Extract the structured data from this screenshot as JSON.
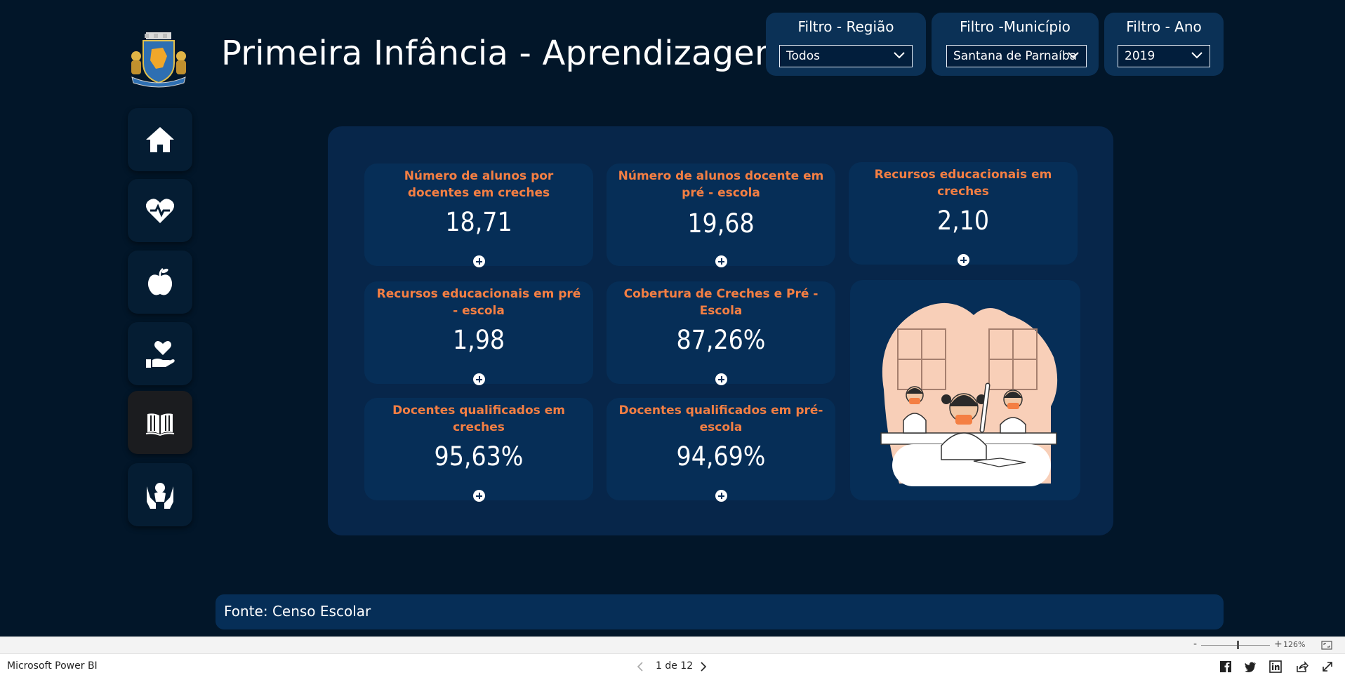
{
  "app": {
    "name": "Microsoft Power BI"
  },
  "page": {
    "title": "Primeira Infância - Aprendizagem"
  },
  "filters": [
    {
      "label": "Filtro - Região",
      "value": "Todos"
    },
    {
      "label": "Filtro -Município",
      "value": "Santana de Parnaíba"
    },
    {
      "label": "Filtro - Ano",
      "value": "2019"
    }
  ],
  "nav": [
    {
      "icon": "home-icon"
    },
    {
      "icon": "heart-pulse-icon"
    },
    {
      "icon": "apple-icon"
    },
    {
      "icon": "hand-heart-icon"
    },
    {
      "icon": "open-book-icon",
      "active": true
    },
    {
      "icon": "hands-child-icon"
    }
  ],
  "cards": [
    {
      "title": "Número de alunos por docentes em creches",
      "value": "18,71"
    },
    {
      "title": "Número de alunos docente em pré - escola",
      "value": "19,68"
    },
    {
      "title": "Recursos educacionais em creches",
      "value": "2,10"
    },
    {
      "title": "Recursos educacionais em pré - escola",
      "value": "1,98"
    },
    {
      "title": "Cobertura de Creches e Pré - Escola",
      "value": "87,26%"
    },
    {
      "title": "Docentes qualificados em creches",
      "value": "95,63%"
    },
    {
      "title": "Docentes qualificados em pré-escola",
      "value": "94,69%"
    }
  ],
  "source": "Fonte: Censo Escolar",
  "pager": {
    "text": "1 de 12"
  },
  "zoom": {
    "level": "126%"
  },
  "colors": {
    "background": "#021629",
    "panel": "#07264a",
    "card": "#062e57",
    "accent": "#f47f43"
  }
}
